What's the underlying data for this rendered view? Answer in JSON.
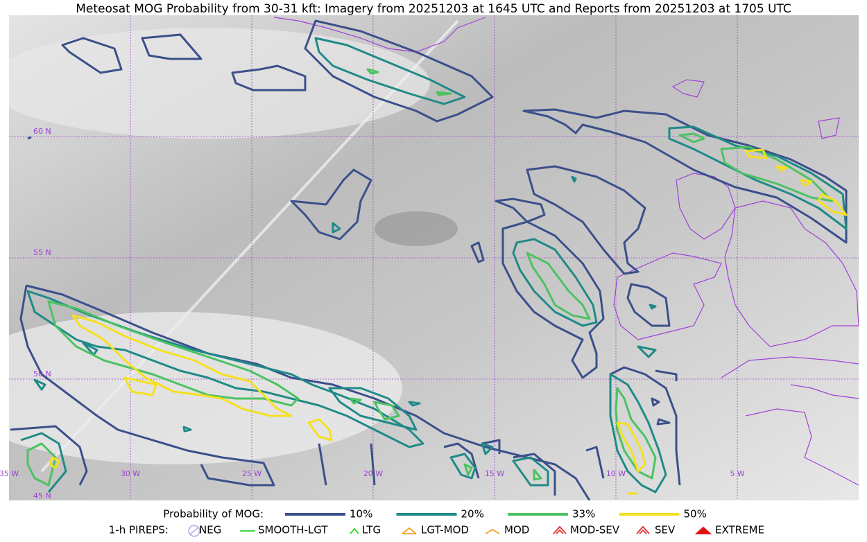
{
  "title": "Meteosat MOG Probability from 30-31 kft: Imagery from 20251203 at 1645 UTC and Reports from 20251203 at 1705 UTC",
  "map": {
    "latitude_labels": [
      "60 N",
      "55 N",
      "50 N",
      "45 N"
    ],
    "longitude_labels": [
      "35 W",
      "30 W",
      "25 W",
      "20 W",
      "15 W",
      "10 W",
      "5 W"
    ]
  },
  "legend": {
    "probability": {
      "title": "Probability of MOG:",
      "items": [
        {
          "label": "10%",
          "color": "#3b4f8a"
        },
        {
          "label": "20%",
          "color": "#1f8a87"
        },
        {
          "label": "33%",
          "color": "#4cc262"
        },
        {
          "label": "50%",
          "color": "#f5e020"
        }
      ]
    },
    "pireps": {
      "title": "1-h PIREPS:",
      "items": [
        {
          "label": "NEG",
          "color": "#b8b8f0"
        },
        {
          "label": "SMOOTH-LGT",
          "color": "#33cc33"
        },
        {
          "label": "LTG",
          "color": "#22dd22"
        },
        {
          "label": "LGT-MOD",
          "color": "#f0a020"
        },
        {
          "label": "MOD",
          "color": "#f0a020"
        },
        {
          "label": "MOD-SEV",
          "color": "#e03030"
        },
        {
          "label": "SEV",
          "color": "#e03030"
        },
        {
          "label": "EXTREME",
          "color": "#e01010"
        }
      ]
    }
  }
}
